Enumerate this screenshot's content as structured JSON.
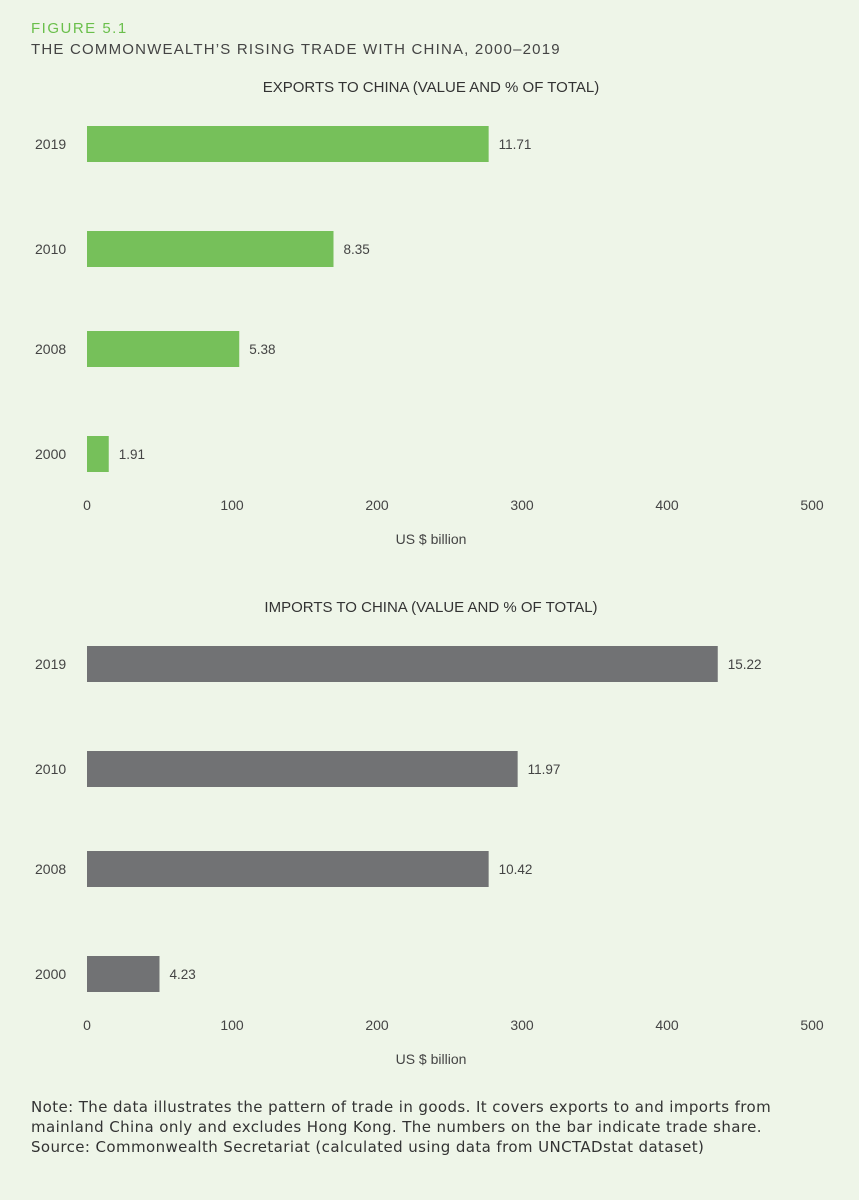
{
  "figure": {
    "label": "FIGURE 5.1",
    "title": "THE COMMONWEALTH’S RISING TRADE WITH CHINA, 2000–2019"
  },
  "chart_data": [
    {
      "type": "bar",
      "orientation": "horizontal",
      "title": "EXPORTS TO CHINA (VALUE AND % OF TOTAL)",
      "categories": [
        "2019",
        "2010",
        "2008",
        "2000"
      ],
      "values": [
        277,
        170,
        105,
        15
      ],
      "data_labels": [
        "11.71",
        "8.35",
        "5.38",
        "1.91"
      ],
      "xlabel": "US $ billion",
      "xlim": [
        0,
        500
      ],
      "xticks": [
        "0",
        "100",
        "200",
        "300",
        "400",
        "500"
      ],
      "color": "#76c05a"
    },
    {
      "type": "bar",
      "orientation": "horizontal",
      "title": "IMPORTS TO CHINA (VALUE AND % OF TOTAL)",
      "categories": [
        "2019",
        "2010",
        "2008",
        "2000"
      ],
      "values": [
        435,
        297,
        277,
        50
      ],
      "data_labels": [
        "15.22",
        "11.97",
        "10.42",
        "4.23"
      ],
      "xlabel": "US $ billion",
      "xlim": [
        0,
        500
      ],
      "xticks": [
        "0",
        "100",
        "200",
        "300",
        "400",
        "500"
      ],
      "color": "#717274"
    }
  ],
  "note": {
    "text": "Note: The data illustrates the pattern of trade in goods. It covers exports to and imports from mainland China only and excludes Hong Kong. The numbers on the bar indicate trade share.",
    "source": "Source: Commonwealth Secretariat (calculated using data from UNCTADstat dataset)"
  }
}
